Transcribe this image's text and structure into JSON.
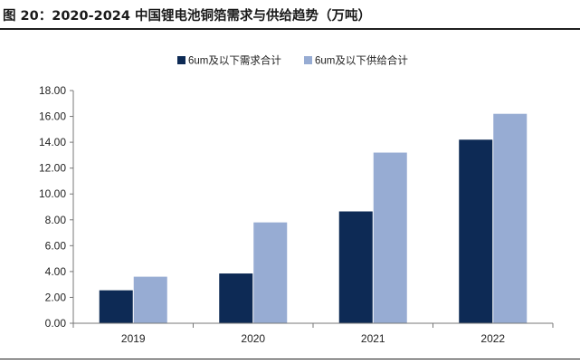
{
  "figure": {
    "title": "图 20：2020-2024 中国锂电池铜箔需求与供给趋势（万吨）"
  },
  "chart_data": {
    "type": "bar",
    "title": "",
    "xlabel": "",
    "ylabel": "",
    "categories": [
      "2019",
      "2020",
      "2021",
      "2022"
    ],
    "series": [
      {
        "name": "6um及以下需求合计",
        "color": "#0d2a55",
        "values": [
          2.55,
          3.85,
          8.65,
          14.2
        ]
      },
      {
        "name": "6um及以下供给合计",
        "color": "#97acd3",
        "values": [
          3.6,
          7.8,
          13.2,
          16.2
        ]
      }
    ],
    "ylim": [
      0,
      18
    ],
    "yticks": [
      "0.00",
      "2.00",
      "4.00",
      "6.00",
      "8.00",
      "10.00",
      "12.00",
      "14.00",
      "16.00",
      "18.00"
    ],
    "grid": false,
    "legend": "top-center"
  }
}
